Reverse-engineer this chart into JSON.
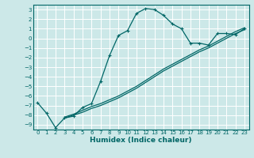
{
  "xlabel": "Humidex (Indice chaleur)",
  "bg_color": "#cce8e8",
  "grid_color": "#ffffff",
  "line_color": "#006666",
  "xlim": [
    -0.5,
    23.5
  ],
  "ylim": [
    -9.5,
    3.5
  ],
  "xticks": [
    0,
    1,
    2,
    3,
    4,
    5,
    6,
    7,
    8,
    9,
    10,
    11,
    12,
    13,
    14,
    15,
    16,
    17,
    18,
    19,
    20,
    21,
    22,
    23
  ],
  "yticks": [
    3,
    2,
    1,
    0,
    -1,
    -2,
    -3,
    -4,
    -5,
    -6,
    -7,
    -8,
    -9
  ],
  "curve1_x": [
    0,
    1,
    2,
    3,
    4,
    5,
    6,
    7,
    8,
    9,
    10,
    11,
    12,
    13,
    14,
    15,
    16,
    17,
    18,
    19,
    20,
    21,
    22,
    23
  ],
  "curve1_y": [
    -6.7,
    -7.8,
    -9.3,
    -8.3,
    -8.1,
    -7.2,
    -6.8,
    -4.5,
    -1.8,
    0.3,
    0.8,
    2.6,
    3.1,
    3.0,
    2.4,
    1.5,
    1.0,
    -0.5,
    -0.5,
    -0.7,
    0.5,
    0.5,
    0.4,
    1.0
  ],
  "curve2_x": [
    3,
    4,
    5,
    6,
    7,
    8,
    9,
    10,
    11,
    12,
    13,
    14,
    15,
    16,
    17,
    18,
    19,
    20,
    21,
    22,
    23
  ],
  "curve2_y": [
    -8.2,
    -7.9,
    -7.5,
    -7.1,
    -6.8,
    -6.4,
    -6.0,
    -5.5,
    -5.0,
    -4.4,
    -3.8,
    -3.2,
    -2.7,
    -2.2,
    -1.7,
    -1.2,
    -0.8,
    -0.3,
    0.2,
    0.7,
    1.1
  ],
  "curve3_x": [
    3,
    4,
    5,
    6,
    7,
    8,
    9,
    10,
    11,
    12,
    13,
    14,
    15,
    16,
    17,
    18,
    19,
    20,
    21,
    22,
    23
  ],
  "curve3_y": [
    -8.3,
    -8.0,
    -7.7,
    -7.3,
    -7.0,
    -6.6,
    -6.2,
    -5.7,
    -5.2,
    -4.6,
    -4.0,
    -3.4,
    -2.9,
    -2.4,
    -1.9,
    -1.4,
    -1.0,
    -0.5,
    0.0,
    0.5,
    0.9
  ],
  "tick_fontsize": 5.0,
  "xlabel_fontsize": 6.5
}
